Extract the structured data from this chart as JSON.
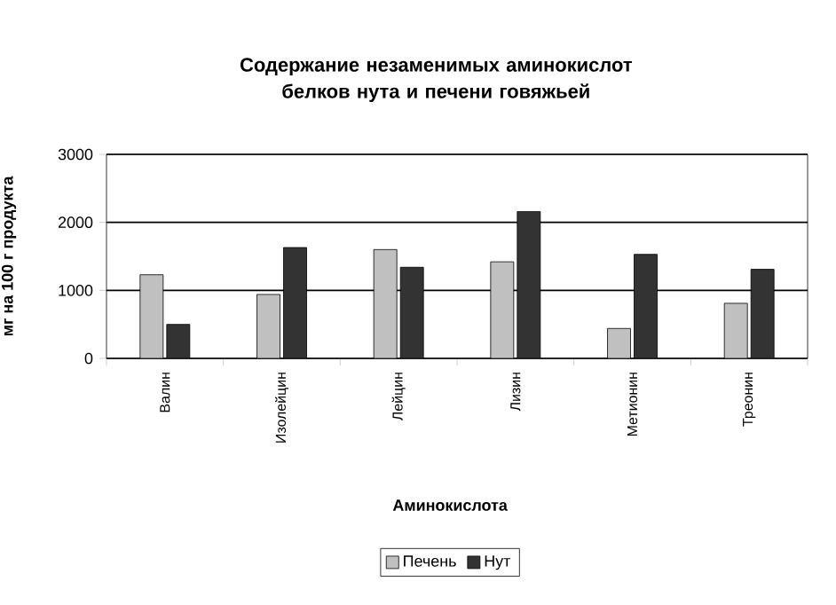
{
  "chart_data": {
    "type": "bar",
    "title": "Содержание незаменимых аминокислот белков нута и печени говяжьей",
    "xlabel": "Аминокислота",
    "ylabel": "мг на 100 г продукта",
    "categories": [
      "Валин",
      "Изолейцин",
      "Лейцин",
      "Лизин",
      "Метионин",
      "Треонин"
    ],
    "series": [
      {
        "name": "Печень",
        "color": "#c0c0c0",
        "values": [
          1230,
          940,
          1600,
          1420,
          440,
          810
        ]
      },
      {
        "name": "Нут",
        "color": "#333333",
        "values": [
          500,
          1630,
          1340,
          2160,
          1530,
          1310
        ]
      }
    ],
    "ylim": [
      0,
      3000
    ],
    "yticks": [
      0,
      1000,
      2000,
      3000
    ],
    "grid": "y",
    "legend": "bottom"
  }
}
